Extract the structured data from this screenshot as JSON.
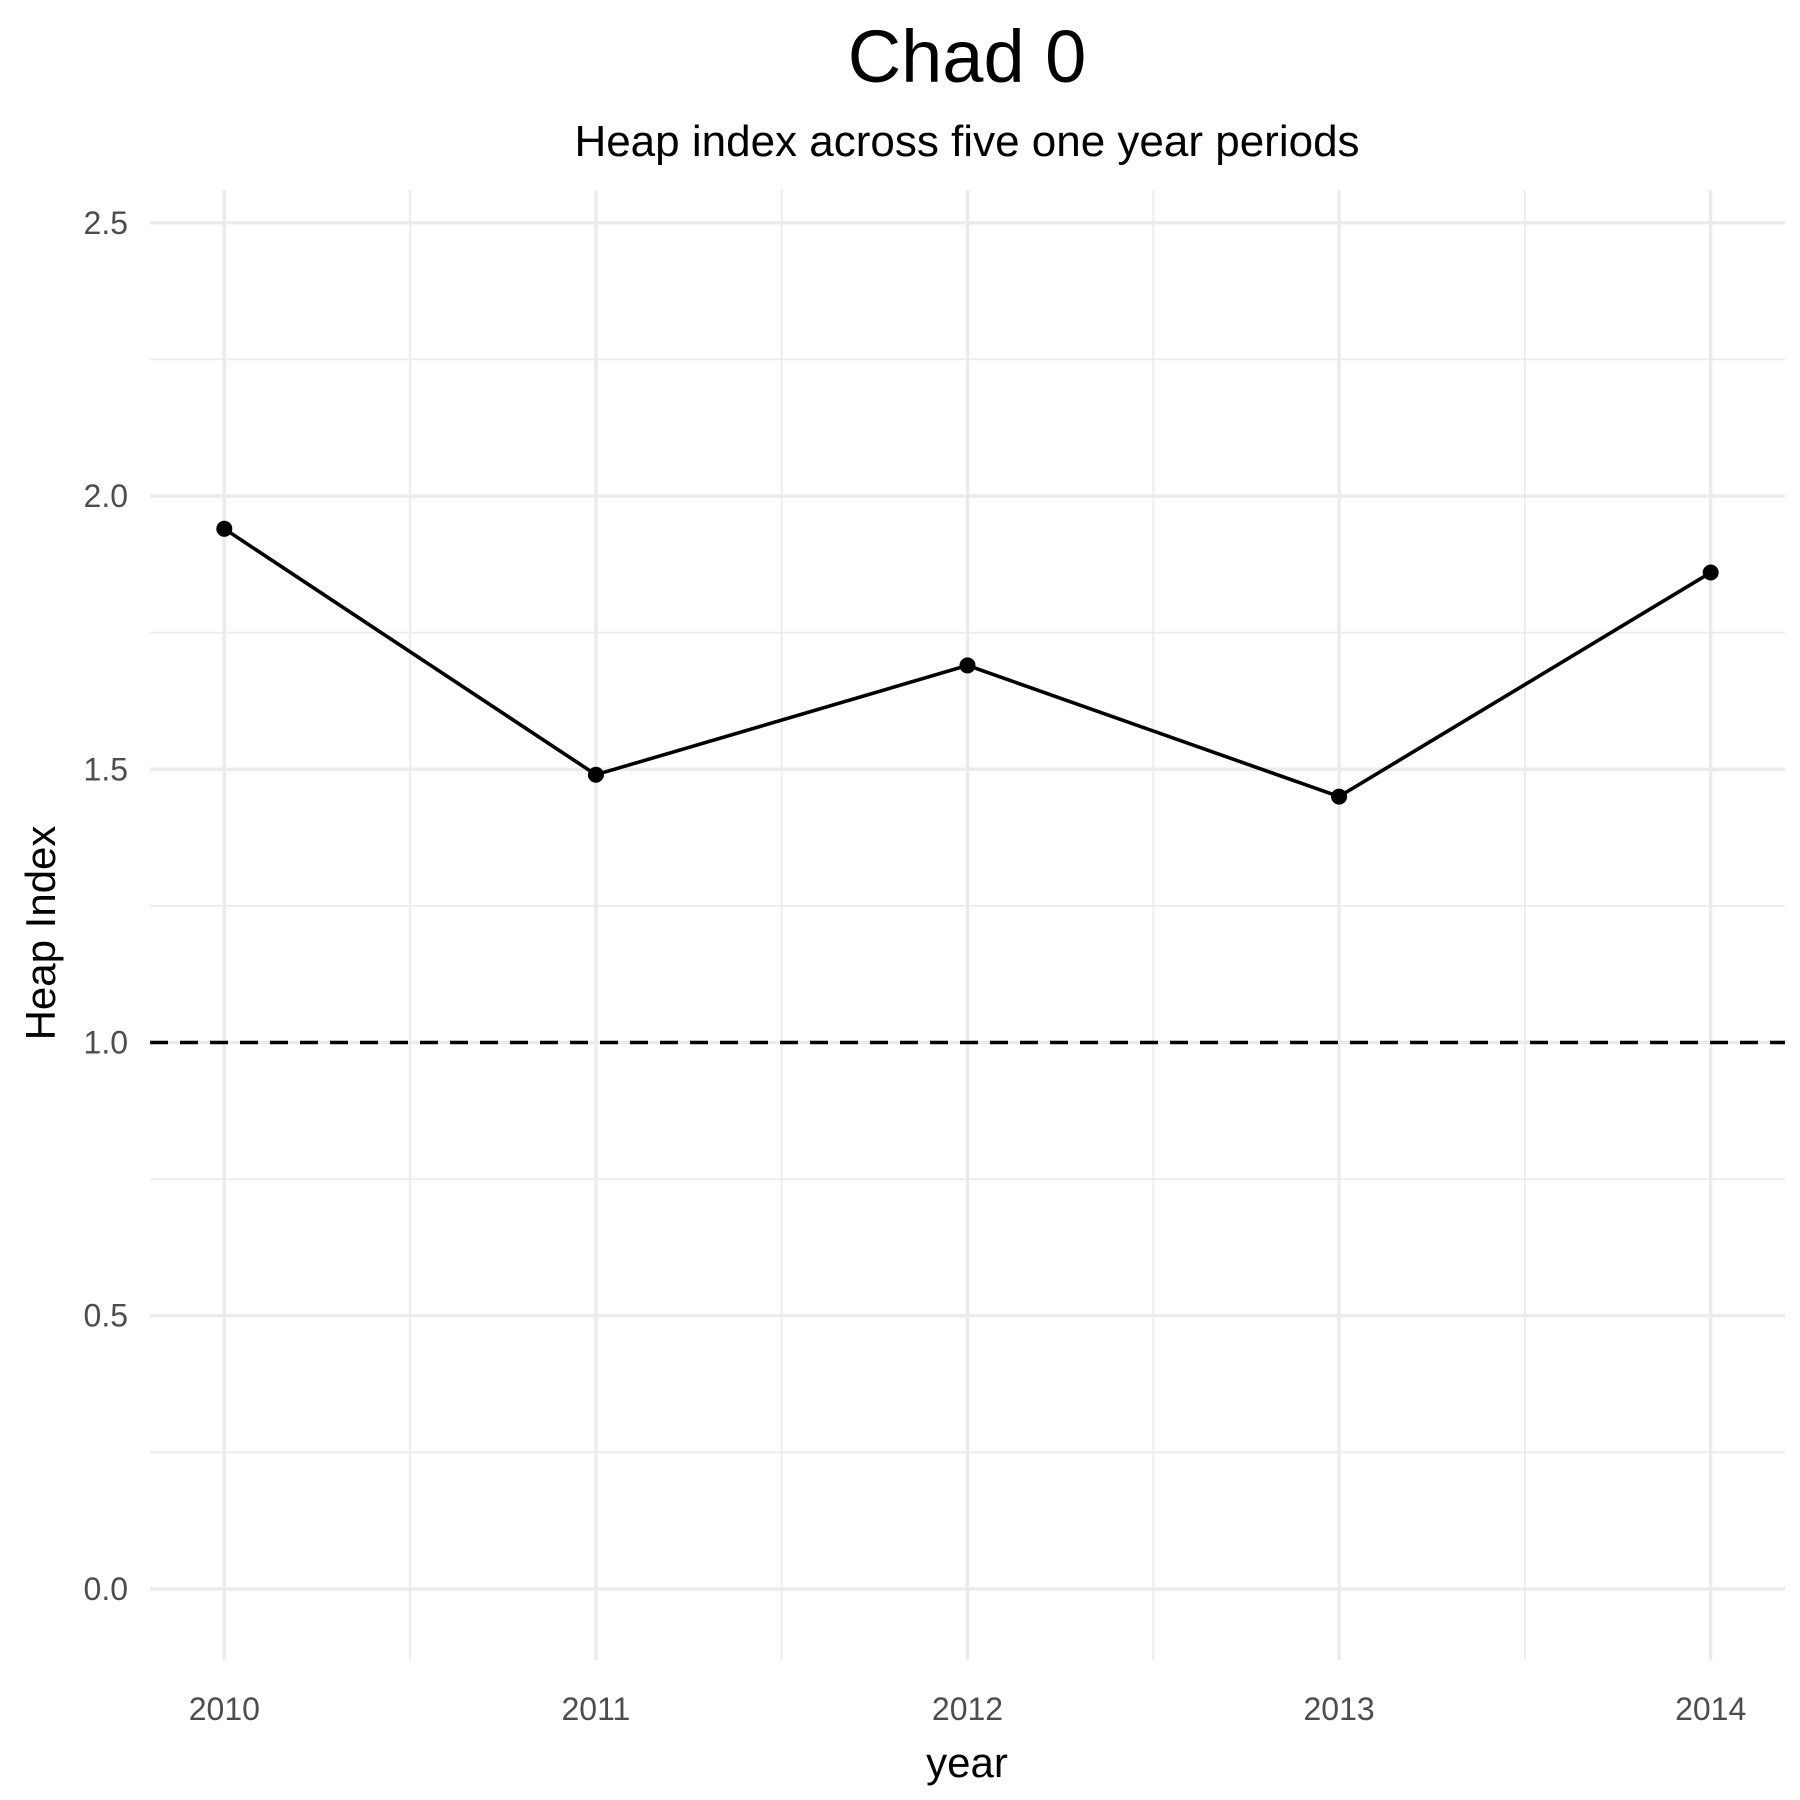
{
  "chart_data": {
    "type": "line",
    "title": "Chad 0",
    "subtitle": "Heap index across five one year periods",
    "xlabel": "year",
    "ylabel": "Heap Index",
    "x": [
      2010,
      2011,
      2012,
      2013,
      2014
    ],
    "x_tick_labels": [
      "2010",
      "2011",
      "2012",
      "2013",
      "2014"
    ],
    "series": [
      {
        "values": [
          1.94,
          1.49,
          1.69,
          1.45,
          1.86
        ]
      }
    ],
    "y_ticks": [
      0.0,
      0.5,
      1.0,
      1.5,
      2.0,
      2.5
    ],
    "y_tick_labels": [
      "0.0",
      "0.5",
      "1.0",
      "1.5",
      "2.0",
      "2.5"
    ],
    "ylim": [
      -0.13,
      2.56
    ],
    "xlim": [
      2009.8,
      2014.2
    ],
    "reference_line": {
      "y": 1.0,
      "style": "dashed"
    },
    "grid": true,
    "legend": "none",
    "colors": {
      "line": "#000000",
      "grid": "#ebebeb",
      "tick_text": "#4d4d4d"
    }
  }
}
